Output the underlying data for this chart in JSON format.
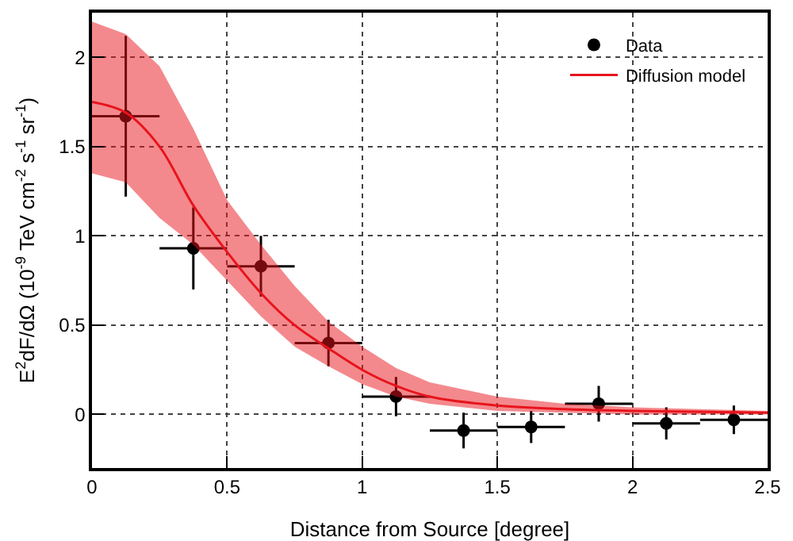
{
  "chart_data": {
    "type": "scatter",
    "xlabel": "Distance from Source [degree]",
    "ylabel": "E$^{2}$dF/dΩ (10$^{-9}$ TeV cm$^{-2}$ s$^{-1}$ sr$^{-1}$)",
    "xlim": [
      0,
      2.5
    ],
    "xticks": [
      0,
      0.5,
      1,
      1.5,
      2,
      2.5
    ],
    "ylim": [
      -0.3,
      2.25
    ],
    "yticks": [
      0,
      0.5,
      1,
      1.5,
      2
    ],
    "grid": true,
    "legend": "top right",
    "marker": "circle",
    "series": [
      {
        "name": "Data",
        "color": "#000000",
        "x": [
          0.125,
          0.375,
          0.625,
          0.875,
          1.125,
          1.375,
          1.625,
          1.875,
          2.125,
          2.375
        ],
        "values": [
          1.67,
          0.93,
          0.83,
          0.4,
          0.1,
          -0.09,
          -0.07,
          0.06,
          -0.05,
          -0.03
        ],
        "errors": [
          0.45,
          0.23,
          0.17,
          0.13,
          0.11,
          0.1,
          0.09,
          0.1,
          0.09,
          0.08
        ],
        "xerrors": [
          0.125,
          0.125,
          0.125,
          0.125,
          0.125,
          0.125,
          0.125,
          0.125,
          0.125,
          0.125
        ]
      },
      {
        "name": "Diffusion model",
        "type": "line",
        "marker": "none",
        "color": "#e8141c",
        "x": [
          0,
          0.125,
          0.25,
          0.375,
          0.5,
          0.625,
          0.75,
          0.875,
          1,
          1.125,
          1.25,
          1.5,
          1.75,
          2,
          2.5
        ],
        "values": [
          1.75,
          1.69,
          1.5,
          1.17,
          0.91,
          0.68,
          0.5,
          0.37,
          0.25,
          0.16,
          0.1,
          0.05,
          0.03,
          0.02,
          0.01
        ],
        "lower": [
          1.35,
          1.3,
          1.1,
          0.95,
          0.75,
          0.55,
          0.38,
          0.27,
          0.17,
          0.1,
          0.06,
          0.02,
          0.01,
          0,
          0
        ],
        "upper": [
          2.2,
          2.13,
          1.95,
          1.6,
          1.2,
          0.95,
          0.72,
          0.52,
          0.38,
          0.26,
          0.18,
          0.1,
          0.06,
          0.04,
          0.02
        ]
      }
    ]
  }
}
